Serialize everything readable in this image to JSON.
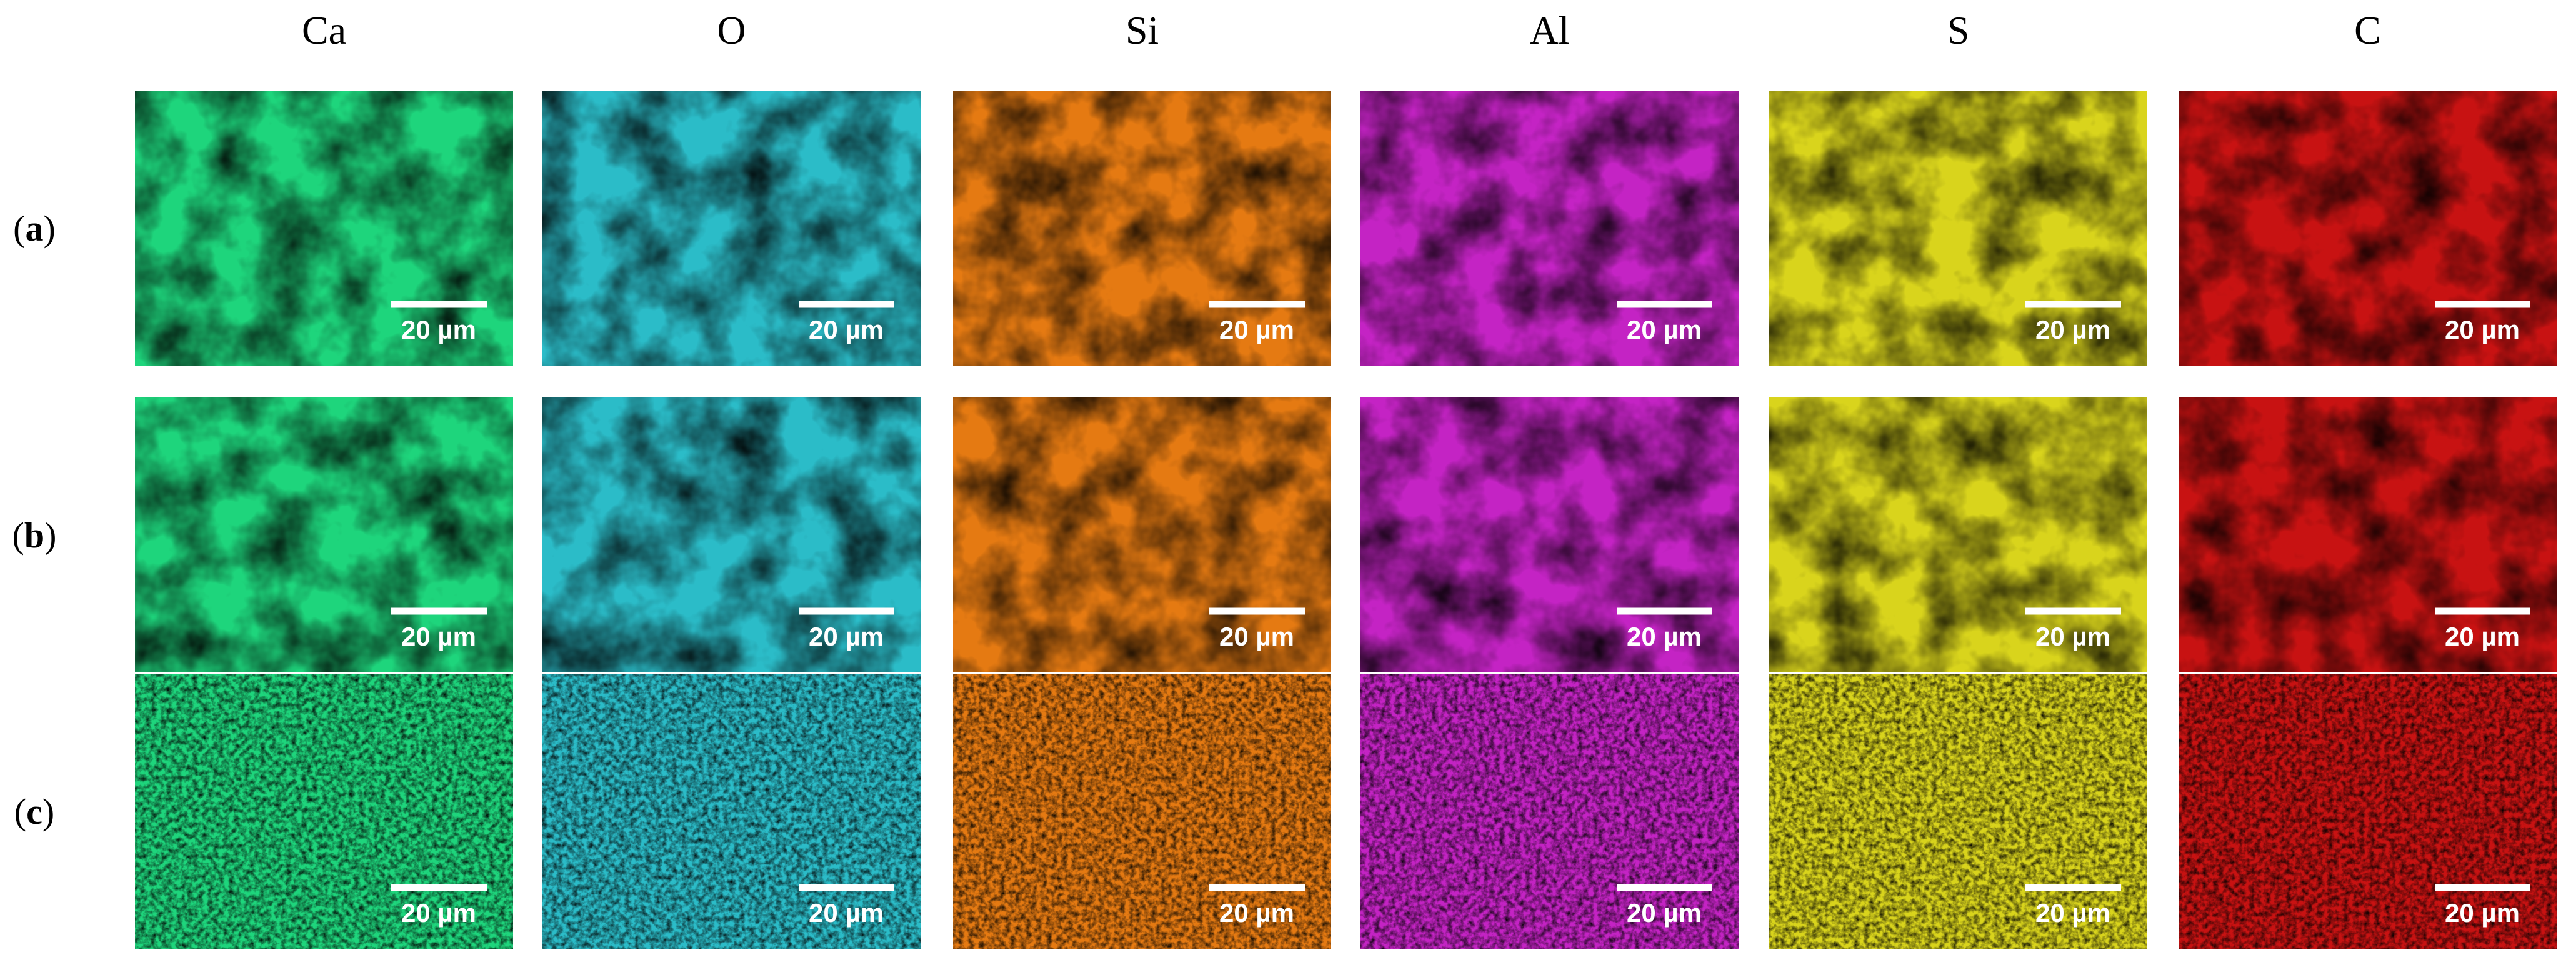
{
  "columns": [
    {
      "name": "Ca",
      "color": "#1ed57c"
    },
    {
      "name": "O",
      "color": "#2bbcc8"
    },
    {
      "name": "Si",
      "color": "#e57a12"
    },
    {
      "name": "Al",
      "color": "#c423c4"
    },
    {
      "name": "S",
      "color": "#d9d41c"
    },
    {
      "name": "C",
      "color": "#c81212"
    }
  ],
  "rows": [
    {
      "open": "(",
      "letter": "a",
      "close": ")"
    },
    {
      "open": "(",
      "letter": "b",
      "close": ")"
    },
    {
      "open": "(",
      "letter": "c",
      "close": ")"
    }
  ],
  "scale_bar": "20 µm"
}
